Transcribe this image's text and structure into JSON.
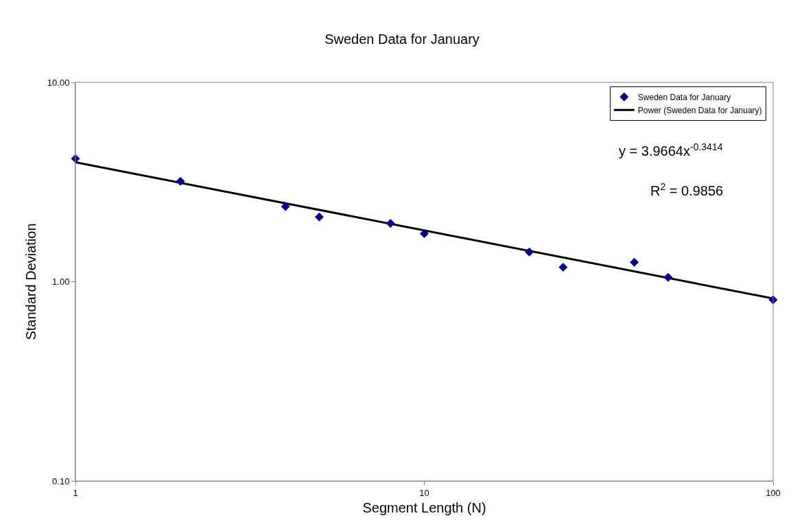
{
  "chart_data": {
    "type": "scatter",
    "title": "Sweden Data for January",
    "xlabel": "Segment Length (N)",
    "ylabel": "Standard Deviation",
    "series": [
      {
        "name": "Sweden Data for January",
        "color": "#000080",
        "marker": "diamond",
        "x": [
          1,
          2,
          4,
          5,
          8,
          10,
          20,
          25,
          40,
          50,
          100
        ],
        "values": [
          4.14,
          3.19,
          2.38,
          2.11,
          1.96,
          1.74,
          1.41,
          1.18,
          1.25,
          1.05,
          0.81
        ]
      },
      {
        "name": "Power (Sweden Data for January)",
        "type": "line",
        "color": "#000000",
        "marker": "none",
        "line_style": "solid",
        "x": [
          1,
          100
        ],
        "values": [
          3.97,
          0.823
        ]
      }
    ],
    "annotations": [
      "y = 3.9664x$^{-0.3414}$",
      "R$^{2}$ = 0.9856"
    ],
    "log": "xy",
    "xlim": [
      1,
      100
    ],
    "ylim": [
      0.1,
      10
    ],
    "xticks": [
      1,
      10,
      100
    ],
    "yticks": [
      {
        "value": 0.1,
        "label": "0.10"
      },
      {
        "value": 1,
        "label": "1.00"
      },
      {
        "value": 10,
        "label": "10.00"
      }
    ],
    "legend": "top right"
  }
}
